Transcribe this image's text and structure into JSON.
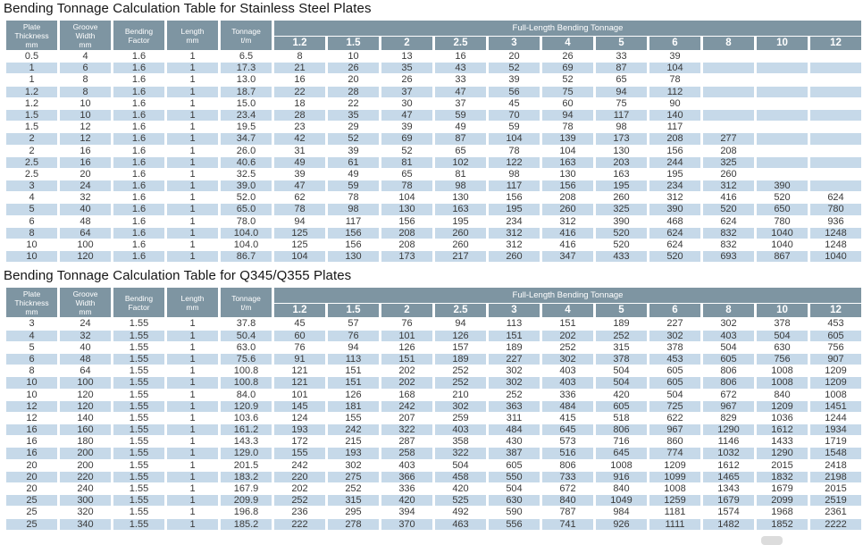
{
  "colors": {
    "header_bg": "#7e95a2",
    "header_text": "#ffffff",
    "row_bg": "#ffffff",
    "row_alt_bg": "#c6d9e9",
    "cell_text": "#3a3a3a",
    "title_text": "#141414"
  },
  "tables": [
    {
      "title": "Bending Tonnage Calculation Table for Stainless Steel Plates",
      "fixed_headers": [
        [
          "Plate",
          "Thickness",
          "mm"
        ],
        [
          "Groove",
          "Width",
          "mm"
        ],
        [
          "Bending",
          "Factor"
        ],
        [
          "Length",
          "mm"
        ],
        [
          "Tonnage",
          "t/m"
        ]
      ],
      "group_header": "Full-Length Bending Tonnage",
      "length_columns": [
        "1.2",
        "1.5",
        "2",
        "2.5",
        "3",
        "4",
        "5",
        "6",
        "8",
        "10",
        "12"
      ],
      "rows": [
        [
          "0.5",
          "4",
          "1.6",
          "1",
          "6.5",
          "8",
          "10",
          "13",
          "16",
          "20",
          "26",
          "33",
          "39",
          "",
          "",
          ""
        ],
        [
          "1",
          "6",
          "1.6",
          "1",
          "17.3",
          "21",
          "26",
          "35",
          "43",
          "52",
          "69",
          "87",
          "104",
          "",
          "",
          ""
        ],
        [
          "1",
          "8",
          "1.6",
          "1",
          "13.0",
          "16",
          "20",
          "26",
          "33",
          "39",
          "52",
          "65",
          "78",
          "",
          "",
          ""
        ],
        [
          "1.2",
          "8",
          "1.6",
          "1",
          "18.7",
          "22",
          "28",
          "37",
          "47",
          "56",
          "75",
          "94",
          "112",
          "",
          "",
          ""
        ],
        [
          "1.2",
          "10",
          "1.6",
          "1",
          "15.0",
          "18",
          "22",
          "30",
          "37",
          "45",
          "60",
          "75",
          "90",
          "",
          "",
          ""
        ],
        [
          "1.5",
          "10",
          "1.6",
          "1",
          "23.4",
          "28",
          "35",
          "47",
          "59",
          "70",
          "94",
          "117",
          "140",
          "",
          "",
          ""
        ],
        [
          "1.5",
          "12",
          "1.6",
          "1",
          "19.5",
          "23",
          "29",
          "39",
          "49",
          "59",
          "78",
          "98",
          "117",
          "",
          "",
          ""
        ],
        [
          "2",
          "12",
          "1.6",
          "1",
          "34.7",
          "42",
          "52",
          "69",
          "87",
          "104",
          "139",
          "173",
          "208",
          "277",
          "",
          ""
        ],
        [
          "2",
          "16",
          "1.6",
          "1",
          "26.0",
          "31",
          "39",
          "52",
          "65",
          "78",
          "104",
          "130",
          "156",
          "208",
          "",
          ""
        ],
        [
          "2.5",
          "16",
          "1.6",
          "1",
          "40.6",
          "49",
          "61",
          "81",
          "102",
          "122",
          "163",
          "203",
          "244",
          "325",
          "",
          ""
        ],
        [
          "2.5",
          "20",
          "1.6",
          "1",
          "32.5",
          "39",
          "49",
          "65",
          "81",
          "98",
          "130",
          "163",
          "195",
          "260",
          "",
          ""
        ],
        [
          "3",
          "24",
          "1.6",
          "1",
          "39.0",
          "47",
          "59",
          "78",
          "98",
          "117",
          "156",
          "195",
          "234",
          "312",
          "390",
          ""
        ],
        [
          "4",
          "32",
          "1.6",
          "1",
          "52.0",
          "62",
          "78",
          "104",
          "130",
          "156",
          "208",
          "260",
          "312",
          "416",
          "520",
          "624"
        ],
        [
          "5",
          "40",
          "1.6",
          "1",
          "65.0",
          "78",
          "98",
          "130",
          "163",
          "195",
          "260",
          "325",
          "390",
          "520",
          "650",
          "780"
        ],
        [
          "6",
          "48",
          "1.6",
          "1",
          "78.0",
          "94",
          "117",
          "156",
          "195",
          "234",
          "312",
          "390",
          "468",
          "624",
          "780",
          "936"
        ],
        [
          "8",
          "64",
          "1.6",
          "1",
          "104.0",
          "125",
          "156",
          "208",
          "260",
          "312",
          "416",
          "520",
          "624",
          "832",
          "1040",
          "1248"
        ],
        [
          "10",
          "100",
          "1.6",
          "1",
          "104.0",
          "125",
          "156",
          "208",
          "260",
          "312",
          "416",
          "520",
          "624",
          "832",
          "1040",
          "1248"
        ],
        [
          "10",
          "120",
          "1.6",
          "1",
          "86.7",
          "104",
          "130",
          "173",
          "217",
          "260",
          "347",
          "433",
          "520",
          "693",
          "867",
          "1040"
        ]
      ]
    },
    {
      "title": "Bending Tonnage Calculation Table for Q345/Q355 Plates",
      "fixed_headers": [
        [
          "Plate",
          "Thickness",
          "mm"
        ],
        [
          "Groove",
          "Width",
          "mm"
        ],
        [
          "Bending",
          "Factor"
        ],
        [
          "Length",
          "mm"
        ],
        [
          "Tonnage",
          "t/m"
        ]
      ],
      "group_header": "Full-Length Bending Tonnage",
      "length_columns": [
        "1.2",
        "1.5",
        "2",
        "2.5",
        "3",
        "4",
        "5",
        "6",
        "8",
        "10",
        "12"
      ],
      "rows": [
        [
          "3",
          "24",
          "1.55",
          "1",
          "37.8",
          "45",
          "57",
          "76",
          "94",
          "113",
          "151",
          "189",
          "227",
          "302",
          "378",
          "453"
        ],
        [
          "4",
          "32",
          "1.55",
          "1",
          "50.4",
          "60",
          "76",
          "101",
          "126",
          "151",
          "202",
          "252",
          "302",
          "403",
          "504",
          "605"
        ],
        [
          "5",
          "40",
          "1.55",
          "1",
          "63.0",
          "76",
          "94",
          "126",
          "157",
          "189",
          "252",
          "315",
          "378",
          "504",
          "630",
          "756"
        ],
        [
          "6",
          "48",
          "1.55",
          "1",
          "75.6",
          "91",
          "113",
          "151",
          "189",
          "227",
          "302",
          "378",
          "453",
          "605",
          "756",
          "907"
        ],
        [
          "8",
          "64",
          "1.55",
          "1",
          "100.8",
          "121",
          "151",
          "202",
          "252",
          "302",
          "403",
          "504",
          "605",
          "806",
          "1008",
          "1209"
        ],
        [
          "10",
          "100",
          "1.55",
          "1",
          "100.8",
          "121",
          "151",
          "202",
          "252",
          "302",
          "403",
          "504",
          "605",
          "806",
          "1008",
          "1209"
        ],
        [
          "10",
          "120",
          "1.55",
          "1",
          "84.0",
          "101",
          "126",
          "168",
          "210",
          "252",
          "336",
          "420",
          "504",
          "672",
          "840",
          "1008"
        ],
        [
          "12",
          "120",
          "1.55",
          "1",
          "120.9",
          "145",
          "181",
          "242",
          "302",
          "363",
          "484",
          "605",
          "725",
          "967",
          "1209",
          "1451"
        ],
        [
          "12",
          "140",
          "1.55",
          "1",
          "103.6",
          "124",
          "155",
          "207",
          "259",
          "311",
          "415",
          "518",
          "622",
          "829",
          "1036",
          "1244"
        ],
        [
          "16",
          "160",
          "1.55",
          "1",
          "161.2",
          "193",
          "242",
          "322",
          "403",
          "484",
          "645",
          "806",
          "967",
          "1290",
          "1612",
          "1934"
        ],
        [
          "16",
          "180",
          "1.55",
          "1",
          "143.3",
          "172",
          "215",
          "287",
          "358",
          "430",
          "573",
          "716",
          "860",
          "1146",
          "1433",
          "1719"
        ],
        [
          "16",
          "200",
          "1.55",
          "1",
          "129.0",
          "155",
          "193",
          "258",
          "322",
          "387",
          "516",
          "645",
          "774",
          "1032",
          "1290",
          "1548"
        ],
        [
          "20",
          "200",
          "1.55",
          "1",
          "201.5",
          "242",
          "302",
          "403",
          "504",
          "605",
          "806",
          "1008",
          "1209",
          "1612",
          "2015",
          "2418"
        ],
        [
          "20",
          "220",
          "1.55",
          "1",
          "183.2",
          "220",
          "275",
          "366",
          "458",
          "550",
          "733",
          "916",
          "1099",
          "1465",
          "1832",
          "2198"
        ],
        [
          "20",
          "240",
          "1.55",
          "1",
          "167.9",
          "202",
          "252",
          "336",
          "420",
          "504",
          "672",
          "840",
          "1008",
          "1343",
          "1679",
          "2015"
        ],
        [
          "25",
          "300",
          "1.55",
          "1",
          "209.9",
          "252",
          "315",
          "420",
          "525",
          "630",
          "840",
          "1049",
          "1259",
          "1679",
          "2099",
          "2519"
        ],
        [
          "25",
          "320",
          "1.55",
          "1",
          "196.8",
          "236",
          "295",
          "394",
          "492",
          "590",
          "787",
          "984",
          "1181",
          "1574",
          "1968",
          "2361"
        ],
        [
          "25",
          "340",
          "1.55",
          "1",
          "185.2",
          "222",
          "278",
          "370",
          "463",
          "556",
          "741",
          "926",
          "1111",
          "1482",
          "1852",
          "2222"
        ]
      ]
    }
  ]
}
